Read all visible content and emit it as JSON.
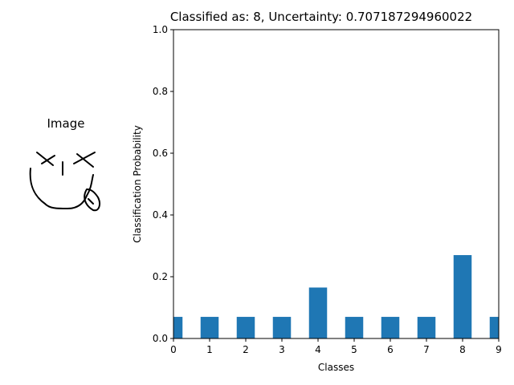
{
  "image_panel": {
    "title": "Image",
    "icon": "face-doodle-icon"
  },
  "chart_data": {
    "type": "bar",
    "title": "Classified as: 8, Uncertainty: 0.707187294960022",
    "xlabel": "Classes",
    "ylabel": "Classification Probability",
    "categories": [
      "0",
      "1",
      "2",
      "3",
      "4",
      "5",
      "6",
      "7",
      "8",
      "9"
    ],
    "values": [
      0.07,
      0.07,
      0.07,
      0.07,
      0.165,
      0.07,
      0.07,
      0.07,
      0.27,
      0.07
    ],
    "xlim": [
      0,
      9
    ],
    "ylim": [
      0,
      1.0
    ],
    "yticks": [
      "0.0",
      "0.2",
      "0.4",
      "0.6",
      "0.8",
      "1.0"
    ],
    "xticks": [
      "0",
      "1",
      "2",
      "3",
      "4",
      "5",
      "6",
      "7",
      "8",
      "9"
    ],
    "bar_color": "#1f77b4",
    "grid": false
  }
}
